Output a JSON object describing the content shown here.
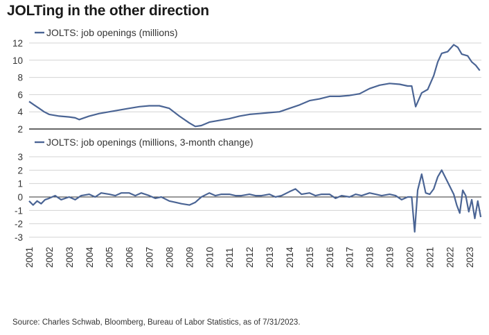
{
  "title": "JOLTing in the other direction",
  "source": "Source: Charles Schwab, Bloomberg, Bureau of Labor Statistics, as of 7/31/2023.",
  "colors": {
    "line": "#4a6494",
    "grid": "#d3d3d3",
    "axis": "#333333"
  },
  "chart_data": [
    {
      "type": "line",
      "legend_label": "JOLTS: job openings (millions)",
      "legend_placement": "top-left",
      "grid": true,
      "ylim": [
        2,
        12
      ],
      "yticks": [
        2,
        4,
        6,
        8,
        10,
        12
      ],
      "xlim": [
        2001,
        2023.58
      ],
      "x_tick_labels": [
        "2001",
        "2002",
        "2003",
        "2004",
        "2005",
        "2006",
        "2007",
        "2008",
        "2009",
        "2010",
        "2011",
        "2012",
        "2013",
        "2014",
        "2015",
        "2016",
        "2017",
        "2018",
        "2019",
        "2020",
        "2021",
        "2022",
        "2023"
      ],
      "series": [
        {
          "x": [
            2001.0,
            2001.25,
            2001.5,
            2001.75,
            2002.0,
            2002.5,
            2003.0,
            2003.3,
            2003.5,
            2004.0,
            2004.5,
            2005.0,
            2005.5,
            2006.0,
            2006.5,
            2007.0,
            2007.5,
            2008.0,
            2008.5,
            2009.0,
            2009.3,
            2009.6,
            2010.0,
            2010.5,
            2011.0,
            2011.5,
            2012.0,
            2012.5,
            2013.0,
            2013.5,
            2014.0,
            2014.5,
            2015.0,
            2015.5,
            2016.0,
            2016.5,
            2017.0,
            2017.5,
            2018.0,
            2018.5,
            2019.0,
            2019.5,
            2019.9,
            2020.1,
            2020.3,
            2020.6,
            2020.9,
            2021.2,
            2021.4,
            2021.6,
            2021.9,
            2022.2,
            2022.4,
            2022.6,
            2022.9,
            2023.1,
            2023.3,
            2023.5
          ],
          "y": [
            5.2,
            4.8,
            4.4,
            4.0,
            3.7,
            3.5,
            3.4,
            3.3,
            3.1,
            3.5,
            3.8,
            4.0,
            4.2,
            4.4,
            4.6,
            4.7,
            4.7,
            4.4,
            3.5,
            2.7,
            2.3,
            2.4,
            2.8,
            3.0,
            3.2,
            3.5,
            3.7,
            3.8,
            3.9,
            4.0,
            4.4,
            4.8,
            5.3,
            5.5,
            5.8,
            5.8,
            5.9,
            6.1,
            6.7,
            7.1,
            7.3,
            7.2,
            7.0,
            7.0,
            4.6,
            6.2,
            6.6,
            8.2,
            9.8,
            10.8,
            11.0,
            11.8,
            11.5,
            10.7,
            10.5,
            9.8,
            9.4,
            8.8
          ]
        }
      ]
    },
    {
      "type": "line",
      "legend_label": "JOLTS: job openings (millions, 3-month change)",
      "legend_placement": "top-left",
      "grid": true,
      "ylim": [
        -3,
        3
      ],
      "yticks": [
        -3,
        -2,
        -1,
        0,
        1,
        2,
        3
      ],
      "xlim": [
        2001,
        2023.58
      ],
      "x_tick_labels": [
        "2001",
        "2002",
        "2003",
        "2004",
        "2005",
        "2006",
        "2007",
        "2008",
        "2009",
        "2010",
        "2011",
        "2012",
        "2013",
        "2014",
        "2015",
        "2016",
        "2017",
        "2018",
        "2019",
        "2020",
        "2021",
        "2022",
        "2023"
      ],
      "series": [
        {
          "x": [
            2001.0,
            2001.2,
            2001.4,
            2001.6,
            2001.8,
            2002.0,
            2002.3,
            2002.6,
            2003.0,
            2003.3,
            2003.6,
            2004.0,
            2004.3,
            2004.6,
            2005.0,
            2005.3,
            2005.6,
            2006.0,
            2006.3,
            2006.6,
            2007.0,
            2007.3,
            2007.6,
            2008.0,
            2008.3,
            2008.6,
            2009.0,
            2009.3,
            2009.6,
            2010.0,
            2010.3,
            2010.6,
            2011.0,
            2011.3,
            2011.6,
            2012.0,
            2012.3,
            2012.6,
            2013.0,
            2013.3,
            2013.6,
            2014.0,
            2014.3,
            2014.6,
            2015.0,
            2015.3,
            2015.6,
            2016.0,
            2016.3,
            2016.6,
            2017.0,
            2017.3,
            2017.6,
            2018.0,
            2018.3,
            2018.6,
            2019.0,
            2019.3,
            2019.6,
            2019.9,
            2020.1,
            2020.25,
            2020.4,
            2020.6,
            2020.8,
            2021.0,
            2021.2,
            2021.4,
            2021.6,
            2021.8,
            2022.0,
            2022.2,
            2022.35,
            2022.5,
            2022.65,
            2022.8,
            2022.95,
            2023.1,
            2023.25,
            2023.4,
            2023.55
          ],
          "y": [
            -0.3,
            -0.6,
            -0.3,
            -0.5,
            -0.2,
            -0.1,
            0.1,
            -0.2,
            0.0,
            -0.2,
            0.1,
            0.2,
            0.0,
            0.3,
            0.2,
            0.1,
            0.3,
            0.3,
            0.1,
            0.3,
            0.1,
            -0.1,
            0.0,
            -0.3,
            -0.4,
            -0.5,
            -0.6,
            -0.4,
            0.0,
            0.3,
            0.1,
            0.2,
            0.2,
            0.1,
            0.1,
            0.2,
            0.1,
            0.1,
            0.2,
            0.0,
            0.1,
            0.4,
            0.6,
            0.2,
            0.3,
            0.1,
            0.2,
            0.2,
            -0.1,
            0.1,
            0.0,
            0.2,
            0.1,
            0.3,
            0.2,
            0.1,
            0.2,
            0.1,
            -0.2,
            0.0,
            0.0,
            -2.6,
            0.5,
            1.7,
            0.3,
            0.2,
            0.6,
            1.5,
            2.0,
            1.4,
            0.8,
            0.2,
            -0.6,
            -1.2,
            0.5,
            0.1,
            -1.1,
            -0.2,
            -1.6,
            -0.3,
            -1.5
          ]
        }
      ]
    }
  ]
}
